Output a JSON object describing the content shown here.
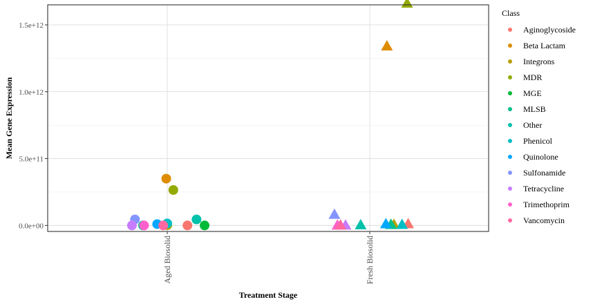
{
  "chart_data": {
    "type": "scatter",
    "xlabel": "Treatment Stage",
    "ylabel": "Mean Gene Expression",
    "categories": [
      "Aged Biosolid",
      "Fresh Biosolid"
    ],
    "ylim": [
      -45000000000.0,
      1650000000000.0
    ],
    "y_ticks": [
      {
        "value": 0,
        "label": "0.0e+00"
      },
      {
        "value": 500000000000.0,
        "label": "5.0e+11"
      },
      {
        "value": 1000000000000.0,
        "label": "1.0e+12"
      },
      {
        "value": 1500000000000.0,
        "label": "1.5e+12"
      }
    ],
    "grid": true,
    "legend": {
      "title": "Class",
      "position": "right"
    },
    "shape_by_category": {
      "Aged Biosolid": "circle",
      "Fresh Biosolid": "triangle"
    },
    "series": [
      {
        "name": "Aginoglycoside",
        "color": "#F8766D",
        "points": [
          {
            "stage": "Aged Biosolid",
            "jitter": 0.2,
            "y": 0
          },
          {
            "stage": "Fresh Biosolid",
            "jitter": 0.38,
            "y": 10000000000.0
          }
        ]
      },
      {
        "name": "Beta Lactam",
        "color": "#DE8C00",
        "points": [
          {
            "stage": "Aged Biosolid",
            "jitter": -0.01,
            "y": 350000000000.0
          },
          {
            "stage": "Fresh Biosolid",
            "jitter": 0.17,
            "y": 1340000000000.0
          }
        ]
      },
      {
        "name": "Integrons",
        "color": "#B79F00",
        "points": [
          {
            "stage": "Aged Biosolid",
            "jitter": 0.0,
            "y": 2000000000.0
          },
          {
            "stage": "Fresh Biosolid",
            "jitter": 0.24,
            "y": 5000000000.0
          }
        ]
      },
      {
        "name": "MDR",
        "color": "#93AA00",
        "points": [
          {
            "stage": "Aged Biosolid",
            "jitter": 0.06,
            "y": 265000000000.0
          },
          {
            "stage": "Fresh Biosolid",
            "jitter": 0.37,
            "y": 1660000000000.0
          }
        ]
      },
      {
        "name": "MGE",
        "color": "#00BA38",
        "points": [
          {
            "stage": "Aged Biosolid",
            "jitter": 0.37,
            "y": 0
          },
          {
            "stage": "Fresh Biosolid",
            "jitter": 0.21,
            "y": 5000000000.0
          }
        ]
      },
      {
        "name": "MLSB",
        "color": "#00C08B",
        "points": [
          {
            "stage": "Aged Biosolid",
            "jitter": -0.24,
            "y": 0
          },
          {
            "stage": "Fresh Biosolid",
            "jitter": 0.21,
            "y": 5000000000.0
          }
        ]
      },
      {
        "name": "Other",
        "color": "#00C1AA",
        "points": [
          {
            "stage": "Aged Biosolid",
            "jitter": 0.29,
            "y": 45000000000.0
          },
          {
            "stage": "Fresh Biosolid",
            "jitter": -0.09,
            "y": 2000000000.0
          }
        ]
      },
      {
        "name": "Phenicol",
        "color": "#00BFC4",
        "points": [
          {
            "stage": "Aged Biosolid",
            "jitter": 0.0,
            "y": 15000000000.0
          },
          {
            "stage": "Fresh Biosolid",
            "jitter": 0.32,
            "y": 5000000000.0
          }
        ]
      },
      {
        "name": "Quinolone",
        "color": "#00A9FF",
        "points": [
          {
            "stage": "Aged Biosolid",
            "jitter": -0.1,
            "y": 10000000000.0
          },
          {
            "stage": "Fresh Biosolid",
            "jitter": 0.16,
            "y": 10000000000.0
          }
        ]
      },
      {
        "name": "Sulfonamide",
        "color": "#8494FF",
        "points": [
          {
            "stage": "Aged Biosolid",
            "jitter": -0.32,
            "y": 45000000000.0
          },
          {
            "stage": "Fresh Biosolid",
            "jitter": -0.35,
            "y": 80000000000.0
          }
        ]
      },
      {
        "name": "Tetracycline",
        "color": "#C77CFF",
        "points": [
          {
            "stage": "Aged Biosolid",
            "jitter": -0.35,
            "y": 0
          },
          {
            "stage": "Fresh Biosolid",
            "jitter": -0.24,
            "y": 0
          }
        ]
      },
      {
        "name": "Trimethoprim",
        "color": "#FF61CC",
        "points": [
          {
            "stage": "Aged Biosolid",
            "jitter": -0.23,
            "y": 0
          },
          {
            "stage": "Fresh Biosolid",
            "jitter": -0.32,
            "y": 0
          }
        ]
      },
      {
        "name": "Vancomycin",
        "color": "#FF68A1",
        "points": [
          {
            "stage": "Aged Biosolid",
            "jitter": -0.04,
            "y": 0
          },
          {
            "stage": "Fresh Biosolid",
            "jitter": -0.29,
            "y": 0
          }
        ]
      }
    ]
  }
}
